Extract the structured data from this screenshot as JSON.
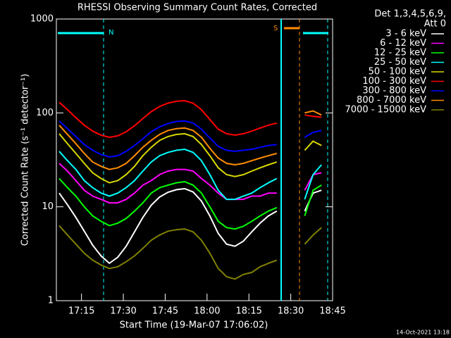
{
  "chart_data": {
    "type": "line",
    "title": "RHESSI Observing Summary Count Rates, Corrected",
    "xlabel": "Start Time (19-Mar-07 17:06:02)",
    "ylabel": "Corrected Count Rate (s⁻¹ detector⁻¹)",
    "legend_title": [
      "Det 1,3,4,5,6,9,",
      "Att 0"
    ],
    "legend": "right",
    "footer": "14-Oct-2021 13:18",
    "annotations": [
      "N",
      "S"
    ],
    "log_y": true,
    "xlim": [
      1026,
      1125
    ],
    "ylim": [
      1,
      1000
    ],
    "xticks": [
      {
        "value": 1035,
        "label": "17:15"
      },
      {
        "value": 1050,
        "label": "17:30"
      },
      {
        "value": 1065,
        "label": "17:45"
      },
      {
        "value": 1080,
        "label": "18:00"
      },
      {
        "value": 1095,
        "label": "18:15"
      },
      {
        "value": 1110,
        "label": "18:30"
      },
      {
        "value": 1125,
        "label": "18:45"
      }
    ],
    "yticks": [
      1,
      10,
      100,
      1000
    ],
    "x": [
      1027,
      1030,
      1033,
      1036,
      1039,
      1042,
      1045,
      1048,
      1051,
      1054,
      1057,
      1060,
      1063,
      1066,
      1069,
      1072,
      1075,
      1078,
      1081,
      1084,
      1087,
      1090,
      1093,
      1096,
      1099,
      1102,
      1105,
      1110,
      1115,
      1118,
      1121
    ],
    "series": [
      {
        "name": "3 - 6 keV",
        "color": "#ffffff",
        "values": [
          14,
          10.5,
          7.7,
          5.5,
          3.9,
          3,
          2.5,
          2.9,
          3.8,
          5.4,
          7.7,
          10.4,
          12.7,
          14.3,
          15.2,
          15.6,
          14.4,
          11.5,
          8,
          5.2,
          4,
          3.8,
          4.3,
          5.4,
          6.7,
          8,
          9,
          null,
          9,
          14,
          15
        ]
      },
      {
        "name": "6 - 12 keV",
        "color": "#ff00ff",
        "values": [
          29,
          24,
          19,
          15,
          13,
          12,
          11,
          11,
          12,
          14,
          17,
          19,
          22,
          24,
          25,
          25,
          24,
          20,
          17,
          14,
          12,
          12,
          12,
          13,
          13,
          14,
          14,
          null,
          15,
          22,
          23
        ]
      },
      {
        "name": "12 - 25 keV",
        "color": "#00ff00",
        "values": [
          20,
          16,
          13,
          10,
          8,
          7,
          6.3,
          6.7,
          7.5,
          9,
          11,
          14,
          16,
          17,
          18,
          18.5,
          17,
          14,
          10,
          7,
          6,
          5.8,
          6.2,
          7,
          8,
          9,
          9.8,
          null,
          8,
          15,
          17
        ]
      },
      {
        "name": "25 - 50 keV",
        "color": "#00ffff",
        "values": [
          39,
          31,
          25,
          19,
          16,
          14,
          13,
          14,
          16,
          19,
          24,
          30,
          35,
          38,
          40,
          41,
          38,
          31,
          22,
          15,
          12,
          12,
          13,
          14,
          16,
          18,
          20,
          null,
          12,
          22,
          28
        ]
      },
      {
        "name": "50 - 100 keV",
        "color": "#d8d800",
        "values": [
          60,
          47,
          37,
          29,
          23,
          20,
          18,
          19,
          22,
          27,
          35,
          43,
          51,
          56,
          59,
          60,
          56,
          46,
          35,
          26,
          22,
          21,
          22,
          24,
          26,
          28,
          30,
          null,
          40,
          50,
          45
        ]
      },
      {
        "name": "100 - 300 keV",
        "color": "#ff0000",
        "values": [
          130,
          108,
          89,
          74,
          64,
          58,
          55,
          57,
          63,
          73,
          87,
          103,
          117,
          127,
          133,
          135,
          127,
          108,
          85,
          67,
          60,
          58,
          60,
          64,
          69,
          74,
          78,
          null,
          95,
          92,
          90
        ]
      },
      {
        "name": "300 - 800 keV",
        "color": "#0000ff",
        "values": [
          82,
          68,
          56,
          46,
          40,
          36,
          34,
          35,
          39,
          45,
          53,
          63,
          71,
          77,
          81,
          82,
          78,
          67,
          54,
          44,
          40,
          39,
          40,
          41,
          43,
          45,
          46,
          null,
          55,
          62,
          65
        ]
      },
      {
        "name": "800 - 7000 keV",
        "color": "#ff8c00",
        "values": [
          74,
          59,
          47,
          37,
          30,
          27,
          25,
          26,
          29,
          35,
          43,
          51,
          59,
          65,
          68,
          69,
          65,
          55,
          42,
          33,
          29,
          28,
          29,
          31,
          33,
          35,
          37,
          null,
          100,
          105,
          95
        ]
      },
      {
        "name": "7000 - 15000 keV",
        "color": "#808000",
        "values": [
          6.3,
          5,
          4,
          3.2,
          2.7,
          2.4,
          2.2,
          2.3,
          2.6,
          3,
          3.6,
          4.4,
          5,
          5.5,
          5.7,
          5.8,
          5.4,
          4.4,
          3.2,
          2.2,
          1.8,
          1.7,
          1.9,
          2,
          2.3,
          2.5,
          2.7,
          null,
          4,
          5,
          6
        ]
      }
    ]
  }
}
